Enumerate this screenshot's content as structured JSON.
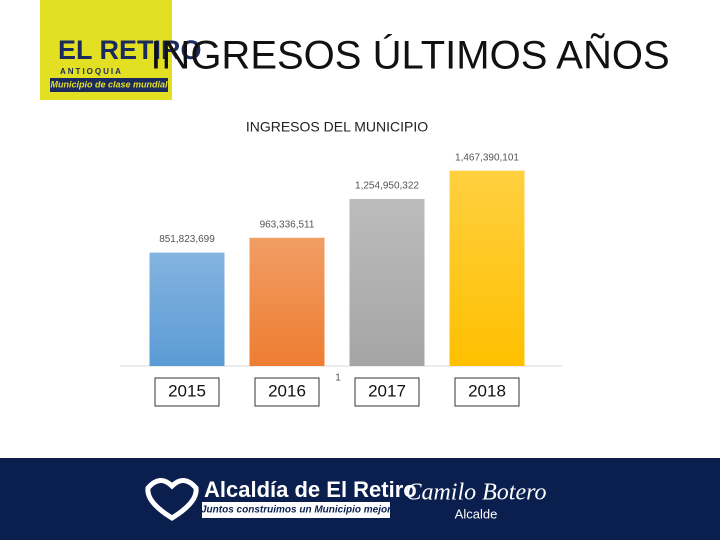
{
  "header": {
    "title": "INGRESOS ÚLTIMOS AÑOS",
    "logo": {
      "name": "EL RETIRO",
      "region": "ANTIOQUIA",
      "slogan": "Municipio de clase mundial"
    }
  },
  "chart_data": {
    "type": "bar",
    "title": "INGRESOS DEL MUNICIPIO",
    "categories": [
      "2015",
      "2016",
      "2017",
      "2018"
    ],
    "values": [
      851823699,
      963336511,
      1254950322,
      1467390101
    ],
    "value_labels": [
      "851,823,699",
      "963,336,511",
      "1,254,950,322",
      "1,467,390,101"
    ],
    "colors": [
      "#5b9bd5",
      "#ed7d31",
      "#a5a5a5",
      "#ffc000"
    ],
    "ylim": [
      0,
      1600000000
    ],
    "annotation": "1"
  },
  "footer": {
    "brand": "Alcaldía de El Retiro",
    "tagline": "Juntos construimos un Municipio mejor",
    "signature": "Camilo Botero",
    "role": "Alcalde"
  }
}
